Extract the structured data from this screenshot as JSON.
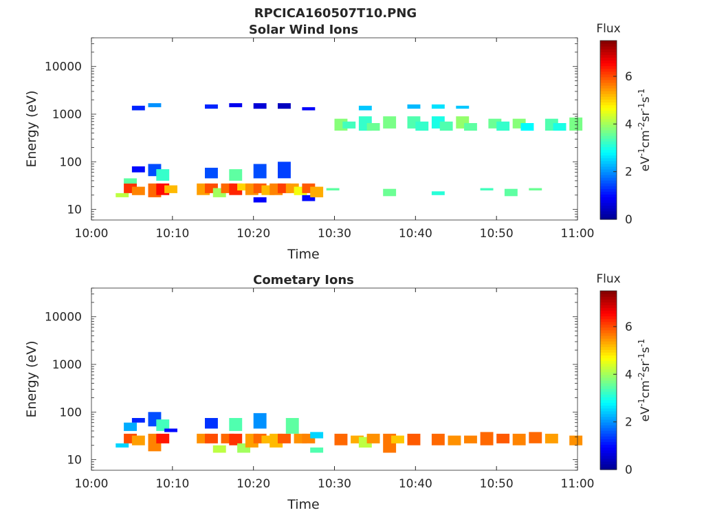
{
  "figure": {
    "title": "RPCICA160507T10.PNG"
  },
  "colors": {
    "jet": [
      "#00008f",
      "#0000ff",
      "#0080ff",
      "#00ffff",
      "#80ff80",
      "#ffff00",
      "#ff8000",
      "#ff0000",
      "#800000"
    ],
    "axis": "#262626"
  },
  "chart_data": [
    {
      "type": "heatmap",
      "title": "Solar Wind Ions",
      "xlabel": "Time",
      "ylabel": "Energy (eV)",
      "yscale": "log",
      "xlim": [
        "10:00",
        "11:00"
      ],
      "ylim": [
        6,
        40000
      ],
      "x_ticks": [
        "10:00",
        "10:10",
        "10:20",
        "10:30",
        "10:40",
        "10:50",
        "11:00"
      ],
      "y_ticks": [
        10,
        100,
        1000,
        10000
      ],
      "y_tick_labels": [
        "10",
        "100",
        "1000",
        "10000"
      ],
      "colorbar": {
        "title": "Flux",
        "label": "eV-1cm-2sr-1s-1",
        "ticks": [
          0,
          2,
          4,
          6
        ],
        "range": [
          0,
          7.5
        ]
      },
      "cells": [
        {
          "t": "10:03",
          "e": [
            18,
            22
          ],
          "v": 4.2
        },
        {
          "t": "10:04",
          "e": [
            22,
            35
          ],
          "v": 6.2
        },
        {
          "t": "10:04",
          "e": [
            35,
            45
          ],
          "v": 3.5
        },
        {
          "t": "10:05",
          "e": [
            20,
            30
          ],
          "v": 5.6
        },
        {
          "t": "10:05",
          "e": [
            1200,
            1500
          ],
          "v": 1.2
        },
        {
          "t": "10:05",
          "e": [
            60,
            80
          ],
          "v": 1.0
        },
        {
          "t": "10:07",
          "e": [
            18,
            35
          ],
          "v": 5.8
        },
        {
          "t": "10:07",
          "e": [
            50,
            90
          ],
          "v": 1.5
        },
        {
          "t": "10:08",
          "e": [
            20,
            35
          ],
          "v": 6.5
        },
        {
          "t": "10:08",
          "e": [
            40,
            70
          ],
          "v": 3.2
        },
        {
          "t": "10:09",
          "e": [
            22,
            32
          ],
          "v": 5.2
        },
        {
          "t": "10:07",
          "e": [
            1400,
            1700
          ],
          "v": 2.0
        },
        {
          "t": "10:13",
          "e": [
            20,
            35
          ],
          "v": 5.4
        },
        {
          "t": "10:14",
          "e": [
            22,
            35
          ],
          "v": 6.0
        },
        {
          "t": "10:14",
          "e": [
            45,
            75
          ],
          "v": 1.5
        },
        {
          "t": "10:15",
          "e": [
            18,
            28
          ],
          "v": 4.0
        },
        {
          "t": "10:14",
          "e": [
            1300,
            1600
          ],
          "v": 1.2
        },
        {
          "t": "10:16",
          "e": [
            22,
            35
          ],
          "v": 5.8
        },
        {
          "t": "10:17",
          "e": [
            20,
            35
          ],
          "v": 6.3
        },
        {
          "t": "10:17",
          "e": [
            40,
            70
          ],
          "v": 3.5
        },
        {
          "t": "10:18",
          "e": [
            25,
            35
          ],
          "v": 5.0
        },
        {
          "t": "10:17",
          "e": [
            1400,
            1700
          ],
          "v": 0.8
        },
        {
          "t": "10:19",
          "e": [
            20,
            35
          ],
          "v": 5.5
        },
        {
          "t": "10:20",
          "e": [
            22,
            35
          ],
          "v": 5.9
        },
        {
          "t": "10:20",
          "e": [
            45,
            90
          ],
          "v": 1.5
        },
        {
          "t": "10:20",
          "e": [
            14,
            18
          ],
          "v": 0.9
        },
        {
          "t": "10:20",
          "e": [
            1300,
            1700
          ],
          "v": 0.6
        },
        {
          "t": "10:21",
          "e": [
            20,
            32
          ],
          "v": 5.2
        },
        {
          "t": "10:22",
          "e": [
            20,
            35
          ],
          "v": 5.6
        },
        {
          "t": "10:23",
          "e": [
            22,
            35
          ],
          "v": 6.1
        },
        {
          "t": "10:23",
          "e": [
            45,
            100
          ],
          "v": 1.4
        },
        {
          "t": "10:23",
          "e": [
            1300,
            1700
          ],
          "v": 0.4
        },
        {
          "t": "10:24",
          "e": [
            22,
            35
          ],
          "v": 5.4
        },
        {
          "t": "10:25",
          "e": [
            20,
            30
          ],
          "v": 4.6
        },
        {
          "t": "10:26",
          "e": [
            22,
            35
          ],
          "v": 5.9
        },
        {
          "t": "10:26",
          "e": [
            15,
            20
          ],
          "v": 1.0
        },
        {
          "t": "10:27",
          "e": [
            18,
            30
          ],
          "v": 5.3
        },
        {
          "t": "10:26",
          "e": [
            1200,
            1400
          ],
          "v": 0.9
        },
        {
          "t": "10:29",
          "e": [
            25,
            28
          ],
          "v": 3.5
        },
        {
          "t": "10:30",
          "e": [
            450,
            800
          ],
          "v": 3.8
        },
        {
          "t": "10:31",
          "e": [
            500,
            700
          ],
          "v": 3.3
        },
        {
          "t": "10:33",
          "e": [
            450,
            900
          ],
          "v": 3.2
        },
        {
          "t": "10:33",
          "e": [
            1200,
            1500
          ],
          "v": 2.4
        },
        {
          "t": "10:34",
          "e": [
            450,
            650
          ],
          "v": 3.6
        },
        {
          "t": "10:36",
          "e": [
            500,
            900
          ],
          "v": 3.7
        },
        {
          "t": "10:36",
          "e": [
            19,
            27
          ],
          "v": 3.6
        },
        {
          "t": "10:39",
          "e": [
            500,
            900
          ],
          "v": 3.4
        },
        {
          "t": "10:39",
          "e": [
            1300,
            1600
          ],
          "v": 2.3
        },
        {
          "t": "10:40",
          "e": [
            450,
            700
          ],
          "v": 3.2
        },
        {
          "t": "10:42",
          "e": [
            20,
            24
          ],
          "v": 3.1
        },
        {
          "t": "10:42",
          "e": [
            500,
            900
          ],
          "v": 3.0
        },
        {
          "t": "10:42",
          "e": [
            1300,
            1600
          ],
          "v": 2.6
        },
        {
          "t": "10:43",
          "e": [
            450,
            700
          ],
          "v": 3.4
        },
        {
          "t": "10:45",
          "e": [
            500,
            900
          ],
          "v": 3.9
        },
        {
          "t": "10:45",
          "e": [
            1300,
            1500
          ],
          "v": 2.4
        },
        {
          "t": "10:46",
          "e": [
            450,
            650
          ],
          "v": 3.5
        },
        {
          "t": "10:48",
          "e": [
            25,
            28
          ],
          "v": 3.3
        },
        {
          "t": "10:49",
          "e": [
            500,
            800
          ],
          "v": 3.6
        },
        {
          "t": "10:50",
          "e": [
            450,
            700
          ],
          "v": 3.2
        },
        {
          "t": "10:51",
          "e": [
            19,
            27
          ],
          "v": 3.5
        },
        {
          "t": "10:52",
          "e": [
            500,
            800
          ],
          "v": 3.8
        },
        {
          "t": "10:53",
          "e": [
            450,
            650
          ],
          "v": 2.8
        },
        {
          "t": "10:54",
          "e": [
            25,
            28
          ],
          "v": 3.6
        },
        {
          "t": "10:56",
          "e": [
            450,
            800
          ],
          "v": 3.4
        },
        {
          "t": "10:57",
          "e": [
            450,
            650
          ],
          "v": 3.0
        },
        {
          "t": "10:59",
          "e": [
            450,
            850
          ],
          "v": 3.7
        }
      ]
    },
    {
      "type": "heatmap",
      "title": "Cometary Ions",
      "xlabel": "Time",
      "ylabel": "Energy (eV)",
      "yscale": "log",
      "xlim": [
        "10:00",
        "11:00"
      ],
      "ylim": [
        6,
        40000
      ],
      "x_ticks": [
        "10:00",
        "10:10",
        "10:20",
        "10:30",
        "10:40",
        "10:50",
        "11:00"
      ],
      "y_ticks": [
        10,
        100,
        1000,
        10000
      ],
      "y_tick_labels": [
        "10",
        "100",
        "1000",
        "10000"
      ],
      "colorbar": {
        "title": "Flux",
        "label": "eV-1cm-2sr-1s-1",
        "ticks": [
          0,
          2,
          4,
          6
        ],
        "range": [
          0,
          7.5
        ]
      },
      "cells": [
        {
          "t": "10:03",
          "e": [
            18,
            22
          ],
          "v": 2.5
        },
        {
          "t": "10:04",
          "e": [
            22,
            35
          ],
          "v": 6.0
        },
        {
          "t": "10:04",
          "e": [
            40,
            60
          ],
          "v": 2.2
        },
        {
          "t": "10:05",
          "e": [
            20,
            32
          ],
          "v": 5.4
        },
        {
          "t": "10:05",
          "e": [
            60,
            75
          ],
          "v": 1.2
        },
        {
          "t": "10:07",
          "e": [
            15,
            35
          ],
          "v": 5.6
        },
        {
          "t": "10:07",
          "e": [
            50,
            100
          ],
          "v": 1.5
        },
        {
          "t": "10:08",
          "e": [
            22,
            35
          ],
          "v": 6.4
        },
        {
          "t": "10:08",
          "e": [
            40,
            70
          ],
          "v": 3.3
        },
        {
          "t": "10:09",
          "e": [
            38,
            45
          ],
          "v": 1.0
        },
        {
          "t": "10:13",
          "e": [
            22,
            35
          ],
          "v": 5.5
        },
        {
          "t": "10:14",
          "e": [
            22,
            35
          ],
          "v": 6.0
        },
        {
          "t": "10:14",
          "e": [
            45,
            75
          ],
          "v": 1.3
        },
        {
          "t": "10:15",
          "e": [
            14,
            20
          ],
          "v": 4.2
        },
        {
          "t": "10:16",
          "e": [
            22,
            35
          ],
          "v": 5.8
        },
        {
          "t": "10:17",
          "e": [
            20,
            35
          ],
          "v": 6.2
        },
        {
          "t": "10:17",
          "e": [
            40,
            75
          ],
          "v": 3.4
        },
        {
          "t": "10:18",
          "e": [
            14,
            22
          ],
          "v": 4.0
        },
        {
          "t": "10:19",
          "e": [
            18,
            35
          ],
          "v": 5.4
        },
        {
          "t": "10:20",
          "e": [
            22,
            35
          ],
          "v": 5.8
        },
        {
          "t": "10:20",
          "e": [
            45,
            95
          ],
          "v": 2.0
        },
        {
          "t": "10:21",
          "e": [
            22,
            32
          ],
          "v": 5.2
        },
        {
          "t": "10:22",
          "e": [
            18,
            35
          ],
          "v": 5.2
        },
        {
          "t": "10:23",
          "e": [
            22,
            35
          ],
          "v": 5.9
        },
        {
          "t": "10:24",
          "e": [
            35,
            75
          ],
          "v": 3.5
        },
        {
          "t": "10:25",
          "e": [
            22,
            35
          ],
          "v": 5.5
        },
        {
          "t": "10:26",
          "e": [
            22,
            35
          ],
          "v": 5.6
        },
        {
          "t": "10:27",
          "e": [
            14,
            18
          ],
          "v": 3.4
        },
        {
          "t": "10:27",
          "e": [
            28,
            38
          ],
          "v": 2.5
        },
        {
          "t": "10:30",
          "e": [
            20,
            35
          ],
          "v": 5.8
        },
        {
          "t": "10:32",
          "e": [
            22,
            32
          ],
          "v": 5.3
        },
        {
          "t": "10:33",
          "e": [
            18,
            30
          ],
          "v": 4.2
        },
        {
          "t": "10:34",
          "e": [
            22,
            35
          ],
          "v": 5.5
        },
        {
          "t": "10:36",
          "e": [
            14,
            35
          ],
          "v": 5.7
        },
        {
          "t": "10:37",
          "e": [
            22,
            32
          ],
          "v": 5.1
        },
        {
          "t": "10:39",
          "e": [
            20,
            35
          ],
          "v": 5.9
        },
        {
          "t": "10:42",
          "e": [
            20,
            35
          ],
          "v": 5.8
        },
        {
          "t": "10:44",
          "e": [
            20,
            32
          ],
          "v": 5.5
        },
        {
          "t": "10:46",
          "e": [
            22,
            32
          ],
          "v": 5.6
        },
        {
          "t": "10:48",
          "e": [
            20,
            38
          ],
          "v": 5.8
        },
        {
          "t": "10:50",
          "e": [
            22,
            35
          ],
          "v": 5.9
        },
        {
          "t": "10:52",
          "e": [
            20,
            35
          ],
          "v": 5.6
        },
        {
          "t": "10:54",
          "e": [
            22,
            38
          ],
          "v": 5.8
        },
        {
          "t": "10:56",
          "e": [
            22,
            35
          ],
          "v": 5.4
        },
        {
          "t": "10:59",
          "e": [
            20,
            32
          ],
          "v": 5.5
        }
      ]
    }
  ]
}
